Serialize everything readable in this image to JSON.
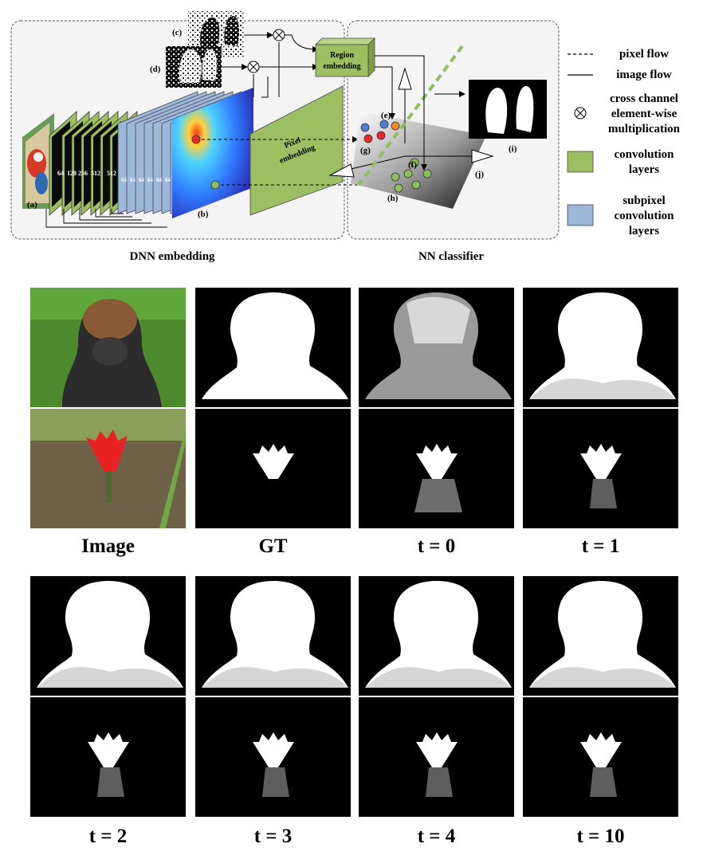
{
  "diagram": {
    "panel_labels": {
      "a": "(a)",
      "b": "(b)",
      "c": "(c)",
      "d": "(d)",
      "e": "(e)",
      "f": "(f)",
      "g": "(g)",
      "h": "(h)",
      "i": "(i)",
      "j": "(j)"
    },
    "green_layer_numbers": [
      "64",
      "128",
      "256",
      "512",
      "512"
    ],
    "blue_layer_numbers": [
      "64",
      "64",
      "64",
      "64",
      "64",
      "64",
      "64"
    ],
    "region_embedding_label": [
      "Region",
      "embedding"
    ],
    "pixel_embedding_label": [
      "Pixel",
      "embedding"
    ],
    "section_titles": {
      "dnn": "DNN embedding",
      "nn": "NN classifier"
    },
    "legend": [
      {
        "kind": "dashed",
        "lines": [
          "pixel flow"
        ]
      },
      {
        "kind": "solid",
        "lines": [
          "image flow"
        ]
      },
      {
        "kind": "otimes",
        "lines": [
          "cross channel",
          "element-wise",
          "multiplication"
        ]
      },
      {
        "kind": "green",
        "color": "#9dbf62",
        "lines": [
          "convolution",
          "layers"
        ]
      },
      {
        "kind": "blue",
        "color": "#9db8d9",
        "lines": [
          "subpixel",
          "convolution",
          "layers"
        ]
      }
    ],
    "colors": {
      "green_layer": "#9dbf62",
      "blue_layer": "#9db8d9",
      "dot_red": "#e8282e",
      "dot_blue": "#4a7fd6",
      "dot_orange": "#f08a2a",
      "dot_green": "#8cc05a",
      "dashed_divider": "#8cc05a"
    }
  },
  "grid": {
    "top_labels": [
      "Image",
      "GT",
      "t = 0",
      "t = 1"
    ],
    "bottom_labels": [
      "t = 2",
      "t = 3",
      "t = 4",
      "t = 10"
    ]
  }
}
